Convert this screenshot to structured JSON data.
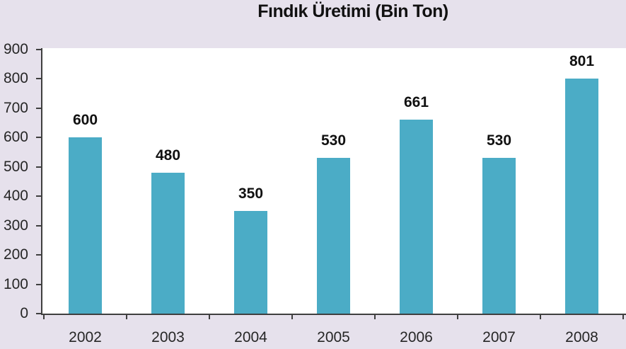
{
  "chart_data": {
    "type": "bar",
    "title": "Fındık Üretimi (Bin Ton)",
    "categories": [
      "2002",
      "2003",
      "2004",
      "2005",
      "2006",
      "2007",
      "2008"
    ],
    "values": [
      600,
      480,
      350,
      530,
      661,
      530,
      801
    ],
    "series_name": "Fındık Üretimi",
    "xlabel": "",
    "ylabel": "",
    "ylim": [
      0,
      900
    ],
    "yticks": [
      0,
      100,
      200,
      300,
      400,
      500,
      600,
      700,
      800,
      900
    ],
    "data_labels": [
      600,
      480,
      350,
      530,
      661,
      530,
      801
    ],
    "grid": false,
    "legend": "none",
    "colors": {
      "bar": "#4BACC6",
      "chart_background": "#E6E1EC",
      "plot_background": "#FFFFFF",
      "axis": "#3F3F3F",
      "text": "#262626"
    }
  }
}
